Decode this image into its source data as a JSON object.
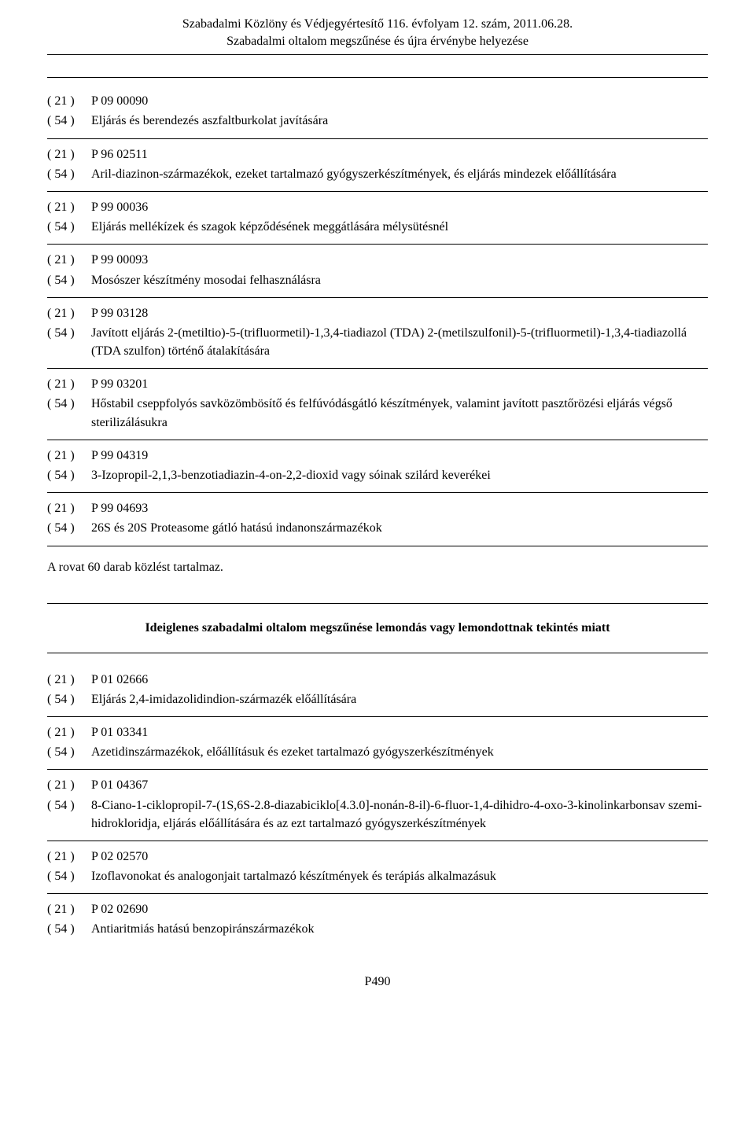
{
  "header": {
    "line1": "Szabadalmi Közlöny és Védjegyértesítő 116. évfolyam 12. szám, 2011.06.28.",
    "line2": "Szabadalmi oltalom megszűnése és újra érvénybe helyezése"
  },
  "codes": {
    "c21": "( 21 )",
    "c54": "( 54 )"
  },
  "entries": [
    {
      "num": "P 09 00090",
      "title": "Eljárás és berendezés aszfaltburkolat javítására"
    },
    {
      "num": "P 96 02511",
      "title": "Aril-diazinon-származékok, ezeket tartalmazó gyógyszerkészítmények, és eljárás mindezek előállítására"
    },
    {
      "num": "P 99 00036",
      "title": "Eljárás mellékízek és szagok képződésének meggátlására mélysütésnél"
    },
    {
      "num": "P 99 00093",
      "title": "Mosószer készítmény mosodai felhasználásra"
    },
    {
      "num": "P 99 03128",
      "title": "Javított eljárás 2-(metiltio)-5-(trifluormetil)-1,3,4-tiadiazol (TDA) 2-(metilszulfonil)-5-(trifluormetil)-1,3,4-tiadiazollá (TDA szulfon) történő átalakítására"
    },
    {
      "num": "P 99 03201",
      "title": "Hőstabil cseppfolyós savközömbösítő és felfúvódásgátló készítmények, valamint javított pasztőrözési eljárás végső sterilizálásukra"
    },
    {
      "num": "P 99 04319",
      "title": "3-Izopropil-2,1,3-benzotiadiazin-4-on-2,2-dioxid vagy sóinak szilárd keverékei"
    },
    {
      "num": "P 99 04693",
      "title": "26S és 20S Proteasome gátló hatású indanonszármazékok"
    }
  ],
  "summary": "A rovat 60 darab közlést tartalmaz.",
  "section2_title": "Ideiglenes szabadalmi oltalom megszűnése lemondás vagy lemondottnak tekintés miatt",
  "entries2": [
    {
      "num": "P 01 02666",
      "title": "Eljárás 2,4-imidazolidindion-származék előállítására"
    },
    {
      "num": "P 01 03341",
      "title": "Azetidinszármazékok, előállításuk és ezeket tartalmazó gyógyszerkészítmények"
    },
    {
      "num": "P 01 04367",
      "title": "8-Ciano-1-ciklopropil-7-(1S,6S-2.8-diazabiciklo[4.3.0]-nonán-8-il)-6-fluor-1,4-dihidro-4-oxo-3-kinolinkarbonsav szemi-hidrokloridja, eljárás előállítására és az ezt tartalmazó gyógyszerkészítmények"
    },
    {
      "num": "P 02 02570",
      "title": "Izoflavonokat és analogonjait tartalmazó készítmények és terápiás alkalmazásuk"
    },
    {
      "num": "P 02 02690",
      "title": "Antiaritmiás hatású benzopiránszármazékok"
    }
  ],
  "footer": "P490"
}
